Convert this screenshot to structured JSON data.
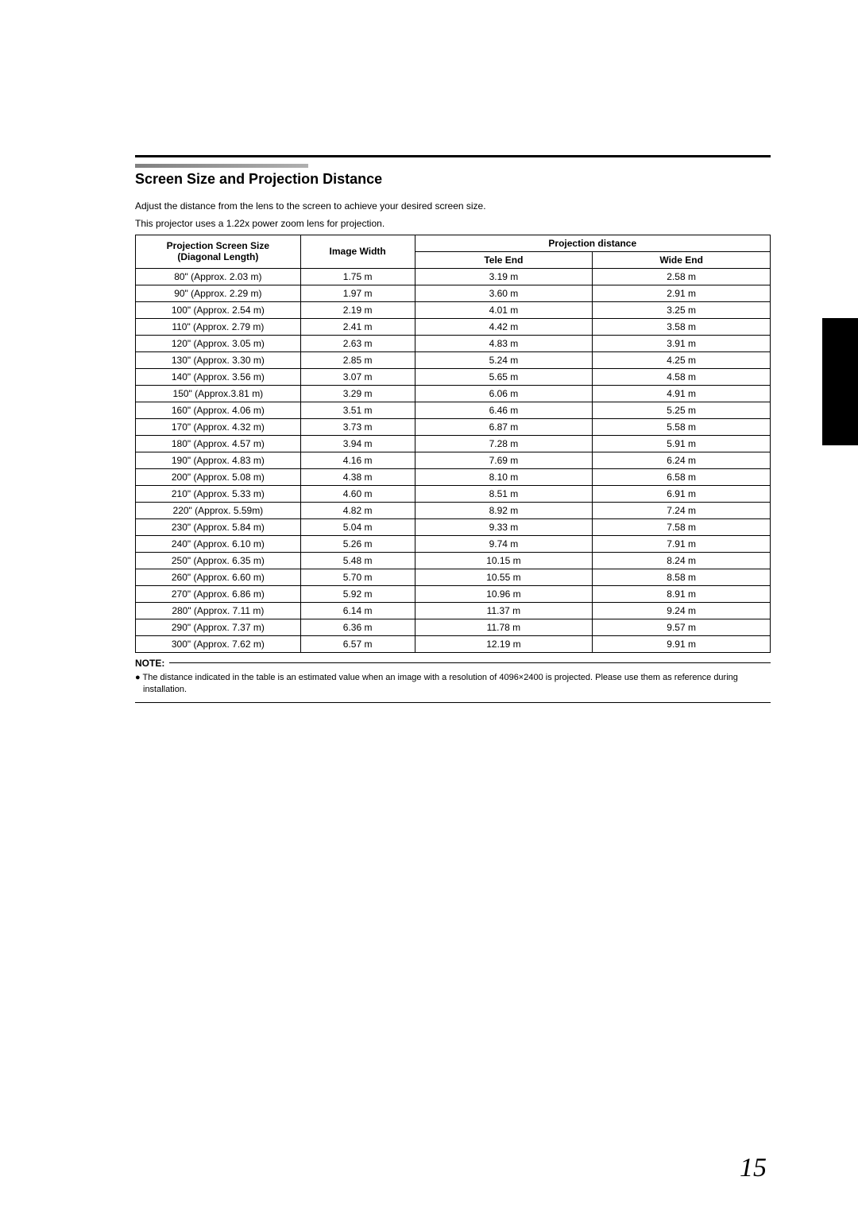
{
  "title": "Screen Size and Projection Distance",
  "intro1": "Adjust the distance from the lens to the screen to achieve your desired screen size.",
  "intro2": "This projector uses a 1.22x power zoom lens for projection.",
  "table": {
    "headers": {
      "size_line1": "Projection Screen Size",
      "size_line2": "(Diagonal Length)",
      "width": "Image Width",
      "distance": "Projection distance",
      "tele": "Tele End",
      "wide": "Wide End"
    },
    "columns": [
      "size",
      "width",
      "tele",
      "wide"
    ],
    "rows": [
      [
        "80\" (Approx. 2.03 m)",
        "1.75 m",
        "3.19 m",
        "2.58 m"
      ],
      [
        "90\" (Approx. 2.29 m)",
        "1.97 m",
        "3.60 m",
        "2.91 m"
      ],
      [
        "100\" (Approx. 2.54 m)",
        "2.19 m",
        "4.01 m",
        "3.25 m"
      ],
      [
        "110\" (Approx. 2.79 m)",
        "2.41 m",
        "4.42 m",
        "3.58 m"
      ],
      [
        "120\" (Approx. 3.05 m)",
        "2.63 m",
        "4.83 m",
        "3.91 m"
      ],
      [
        "130\" (Approx. 3.30 m)",
        "2.85 m",
        "5.24 m",
        "4.25 m"
      ],
      [
        "140\" (Approx. 3.56 m)",
        "3.07 m",
        "5.65 m",
        "4.58 m"
      ],
      [
        "150\" (Approx.3.81 m)",
        "3.29 m",
        "6.06 m",
        "4.91 m"
      ],
      [
        "160\" (Approx. 4.06 m)",
        "3.51 m",
        "6.46 m",
        "5.25 m"
      ],
      [
        "170\" (Approx. 4.32 m)",
        "3.73 m",
        "6.87 m",
        "5.58 m"
      ],
      [
        "180\" (Approx. 4.57 m)",
        "3.94 m",
        "7.28 m",
        "5.91 m"
      ],
      [
        "190\" (Approx. 4.83 m)",
        "4.16 m",
        "7.69 m",
        "6.24 m"
      ],
      [
        "200\" (Approx. 5.08 m)",
        "4.38 m",
        "8.10 m",
        "6.58 m"
      ],
      [
        "210\" (Approx. 5.33 m)",
        "4.60 m",
        "8.51 m",
        "6.91 m"
      ],
      [
        "220\" (Approx. 5.59m)",
        "4.82 m",
        "8.92 m",
        "7.24 m"
      ],
      [
        "230\" (Approx. 5.84 m)",
        "5.04 m",
        "9.33 m",
        "7.58 m"
      ],
      [
        "240\" (Approx. 6.10 m)",
        "5.26 m",
        "9.74 m",
        "7.91 m"
      ],
      [
        "250\" (Approx. 6.35 m)",
        "5.48 m",
        "10.15 m",
        "8.24 m"
      ],
      [
        "260\" (Approx. 6.60 m)",
        "5.70 m",
        "10.55 m",
        "8.58 m"
      ],
      [
        "270\" (Approx. 6.86 m)",
        "5.92 m",
        "10.96 m",
        "8.91 m"
      ],
      [
        "280\" (Approx. 7.11 m)",
        "6.14 m",
        "11.37 m",
        "9.24 m"
      ],
      [
        "290\" (Approx. 7.37 m)",
        "6.36 m",
        "11.78 m",
        "9.57 m"
      ],
      [
        "300\" (Approx. 7.62 m)",
        "6.57 m",
        "12.19 m",
        "9.91 m"
      ]
    ]
  },
  "note_label": "NOTE:",
  "note_bullet": "●",
  "note_text": "The distance indicated in the table is an estimated value when an image with a resolution of 4096×2400 is projected. Please use them as reference during installation.",
  "page_number": "15"
}
